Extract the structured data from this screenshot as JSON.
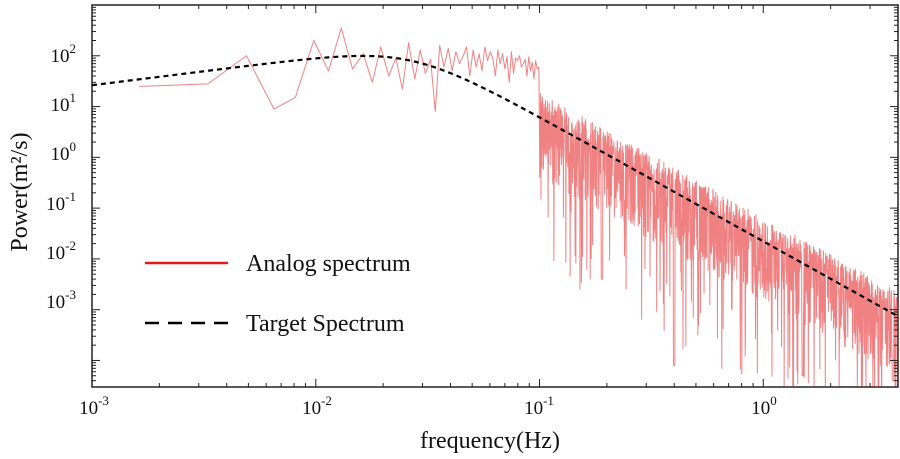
{
  "chart_data": {
    "type": "line",
    "title": "",
    "xlabel": "frequency(Hz)",
    "ylabel": "Power(m²/s)",
    "xscale": "log",
    "yscale": "log",
    "xlim": [
      0.001,
      4.0
    ],
    "ylim": [
      3e-05,
      1000
    ],
    "x_ticks": [
      {
        "base": "10",
        "exp": "-3",
        "value": 0.001
      },
      {
        "base": "10",
        "exp": "-2",
        "value": 0.01
      },
      {
        "base": "10",
        "exp": "-1",
        "value": 0.1
      },
      {
        "base": "10",
        "exp": "0",
        "value": 1
      }
    ],
    "y_ticks": [
      {
        "base": "10",
        "exp": "2",
        "value": 100
      },
      {
        "base": "10",
        "exp": "1",
        "value": 10
      },
      {
        "base": "10",
        "exp": "0",
        "value": 1
      },
      {
        "base": "10",
        "exp": "-1",
        "value": 0.1
      },
      {
        "base": "10",
        "exp": "-2",
        "value": 0.01
      },
      {
        "base": "10",
        "exp": "-3",
        "value": 0.001
      }
    ],
    "legend_position": "lower-left",
    "series": [
      {
        "name": "Analog spectrum",
        "color": "#e31a1c",
        "style": "solid",
        "x": [
          0.00163,
          0.0033,
          0.0049,
          0.0065,
          0.0081,
          0.0098,
          0.0114,
          0.013,
          0.0146,
          0.0163,
          0.0179,
          0.0195,
          0.0212,
          0.0228,
          0.0244,
          0.026,
          0.0277,
          0.0293,
          0.0309,
          0.0326,
          0.0342,
          0.0358,
          0.0374,
          0.0391,
          0.0407,
          0.0423,
          0.0439,
          0.0456,
          0.0472,
          0.0488,
          0.0505,
          0.0521,
          0.0537,
          0.0553,
          0.057,
          0.0586,
          0.0602,
          0.0618,
          0.0635,
          0.0651,
          0.0667,
          0.0684,
          0.07,
          0.0716,
          0.0732,
          0.0749,
          0.0765,
          0.0781,
          0.0797,
          0.0814,
          0.083,
          0.0846,
          0.0863,
          0.0879,
          0.0895,
          0.0911,
          0.0928,
          0.0944,
          0.096,
          0.0977,
          0.0993
        ],
        "values": [
          25,
          28,
          100,
          9,
          15,
          200,
          50,
          350,
          55,
          110,
          30,
          150,
          40,
          90,
          22,
          180,
          35,
          130,
          45,
          85,
          8,
          160,
          60,
          140,
          50,
          120,
          70,
          100,
          150,
          40,
          130,
          60,
          110,
          50,
          150,
          80,
          120,
          90,
          40,
          130,
          70,
          110,
          55,
          95,
          30,
          120,
          45,
          90,
          80,
          100,
          60,
          70,
          85,
          40,
          95,
          50,
          75,
          35,
          80,
          55,
          60
        ],
        "envelope": {
          "f_start": 0.1,
          "f_end": 4.0,
          "points": 1500,
          "shape_source": "series.1",
          "min_ratio": 0.001,
          "max_ratio": 3.0,
          "deep_dips": [
            {
              "x": 0.19,
              "y": 0.004
            },
            {
              "x": 0.4,
              "y": 8e-05
            },
            {
              "x": 1.5,
              "y": 5e-05
            },
            {
              "x": 3.8,
              "y": 4e-05
            }
          ]
        }
      },
      {
        "name": "Target Spectrum",
        "color": "#000000",
        "style": "dashed",
        "model": {
          "form": "A*(f/fp)^n / (1 + (f/fp)^m)",
          "A": 160,
          "fp": 0.0266,
          "n": 0.55,
          "m": 3.0
        },
        "x_range": [
          0.001,
          4.0
        ]
      }
    ]
  }
}
